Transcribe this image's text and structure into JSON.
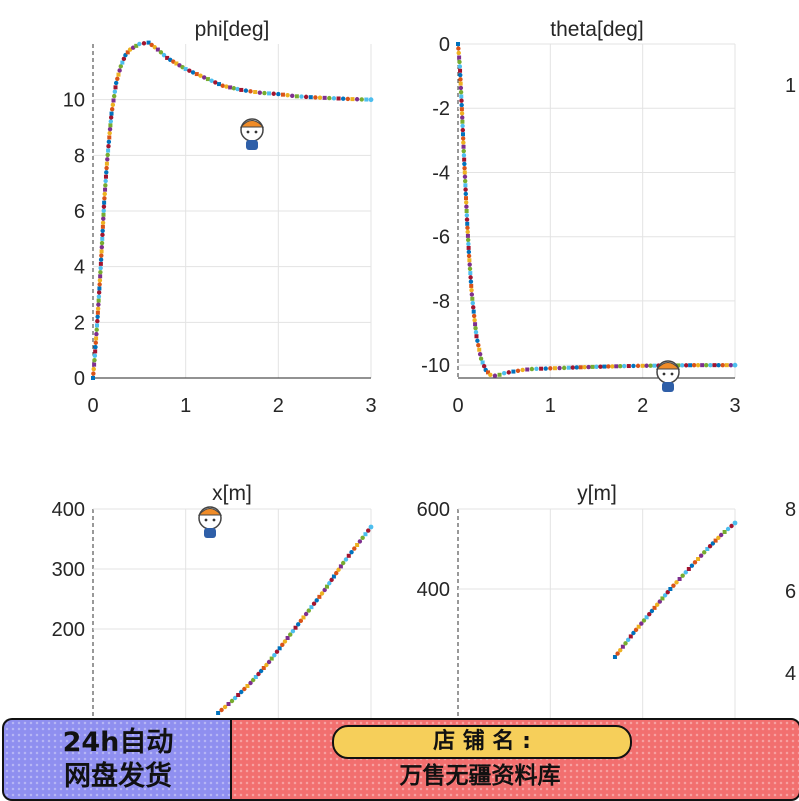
{
  "chart_data": [
    {
      "type": "scatter",
      "title": "phi[deg]",
      "xlim": [
        0,
        3
      ],
      "ylim": [
        0,
        12
      ],
      "xticks": [
        "0",
        "1",
        "2",
        "3"
      ],
      "yticks": [
        "0",
        "2",
        "4",
        "6",
        "8",
        "10"
      ],
      "ytick_values": [
        0,
        2,
        4,
        6,
        8,
        10
      ],
      "series_x": [
        0,
        0.02,
        0.05,
        0.08,
        0.1,
        0.12,
        0.15,
        0.18,
        0.2,
        0.25,
        0.3,
        0.35,
        0.4,
        0.5,
        0.6,
        0.7,
        0.8,
        0.9,
        1.0,
        1.2,
        1.4,
        1.6,
        1.8,
        2.0,
        2.2,
        2.4,
        2.6,
        2.8,
        3.0
      ],
      "series_y": [
        0,
        0.8,
        2.2,
        3.8,
        5.0,
        6.3,
        7.7,
        8.8,
        9.5,
        10.6,
        11.2,
        11.6,
        11.8,
        12.0,
        12.05,
        11.8,
        11.5,
        11.3,
        11.1,
        10.8,
        10.5,
        10.35,
        10.25,
        10.2,
        10.12,
        10.08,
        10.05,
        10.02,
        10.0
      ]
    },
    {
      "type": "scatter",
      "title": "theta[deg]",
      "xlim": [
        0,
        3
      ],
      "ylim": [
        -10.4,
        0
      ],
      "xticks": [
        "0",
        "1",
        "2",
        "3"
      ],
      "yticks": [
        "0",
        "-2",
        "-4",
        "-6",
        "-8",
        "-10"
      ],
      "ytick_values": [
        0,
        -2,
        -4,
        -6,
        -8,
        -10
      ],
      "series_x": [
        0,
        0.02,
        0.04,
        0.06,
        0.08,
        0.1,
        0.12,
        0.15,
        0.18,
        0.2,
        0.25,
        0.3,
        0.35,
        0.4,
        0.45,
        0.5,
        0.6,
        0.7,
        0.8,
        1.0,
        1.2,
        1.5,
        1.8,
        2.0,
        2.3,
        2.6,
        3.0
      ],
      "series_y": [
        0,
        -0.7,
        -1.9,
        -3.2,
        -4.4,
        -5.6,
        -6.6,
        -7.8,
        -8.6,
        -9.1,
        -9.8,
        -10.15,
        -10.3,
        -10.33,
        -10.3,
        -10.25,
        -10.2,
        -10.15,
        -10.12,
        -10.1,
        -10.08,
        -10.05,
        -10.03,
        -10.02,
        -10.01,
        -10.0,
        -10.0
      ]
    },
    {
      "type": "scatter",
      "title": "x[m]",
      "xlim": [
        0,
        3
      ],
      "ylim": [
        0,
        400
      ],
      "xticks": [],
      "yticks": [
        "400",
        "300",
        "200"
      ],
      "ytick_values": [
        400,
        300,
        200
      ],
      "series_x": [
        1.35,
        1.5,
        1.7,
        1.9,
        2.1,
        2.3,
        2.5,
        2.7,
        2.85,
        3.0
      ],
      "series_y": [
        60,
        80,
        110,
        145,
        185,
        225,
        265,
        310,
        340,
        370
      ]
    },
    {
      "type": "scatter",
      "title": "y[m]",
      "xlim": [
        0,
        3
      ],
      "ylim": [
        0,
        600
      ],
      "xticks": [],
      "yticks": [
        "600",
        "400"
      ],
      "ytick_values": [
        600,
        400
      ],
      "series_x": [
        1.7,
        1.9,
        2.1,
        2.3,
        2.5,
        2.7,
        2.85,
        3.0
      ],
      "series_y": [
        230,
        290,
        345,
        400,
        450,
        500,
        535,
        565
      ]
    }
  ],
  "edge_labels": [
    "1",
    "8",
    "6",
    "4"
  ],
  "marker_palette": [
    "#0072bd",
    "#d95319",
    "#edb120",
    "#7e2f8e",
    "#77ac30",
    "#4dbeee",
    "#a2142f"
  ],
  "banner": {
    "left_line1": "24h自动",
    "left_line2": "网盘发货",
    "pill": "店 铺 名 :",
    "store": "万售无疆资料库"
  }
}
